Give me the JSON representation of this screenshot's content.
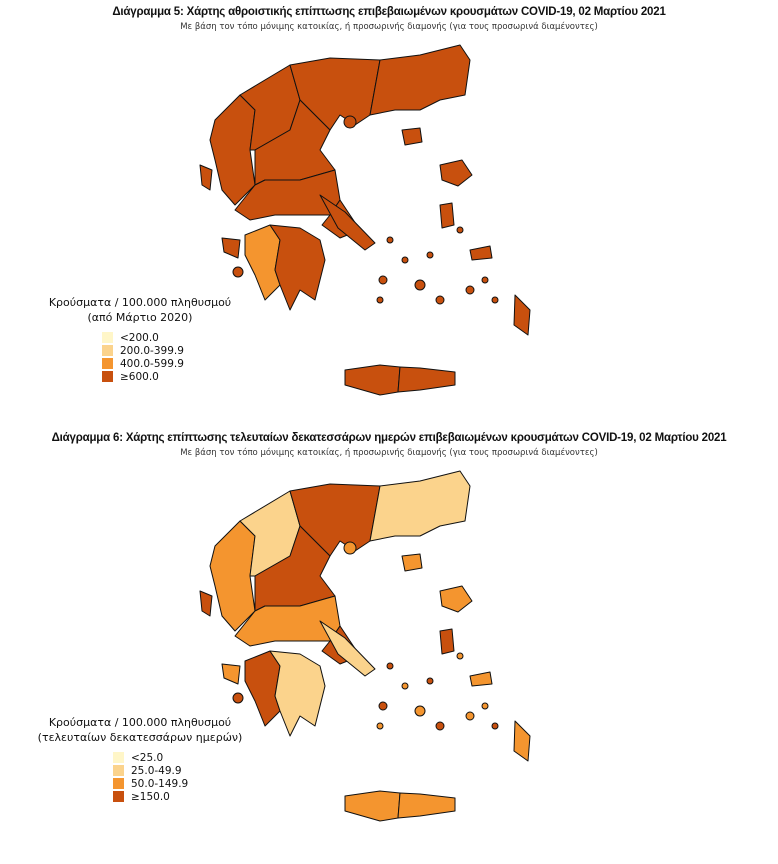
{
  "palette": [
    "#fff6c8",
    "#fbd38c",
    "#f4952f",
    "#c8500e"
  ],
  "maps": [
    {
      "title": "Διάγραμμα 5: Χάρτης αθροιστικής επίπτωσης επιβεβαιωμένων κρουσμάτων COVID-19, 02 Μαρτίου 2021",
      "subtitle": "Με βάση τον τόπο μόνιμης κατοικίας, ή προσωρινής διαμονής (για τους προσωρινά διαμένοντες)",
      "legend": {
        "title_line1": "Κρούσματα / 100.000 πληθυσμού",
        "title_line2": "(από Μάρτιο 2020)",
        "items": [
          "<200.0",
          "200.0-399.9",
          "400.0-599.9",
          "≥600.0"
        ]
      },
      "region_classes": [
        3,
        3,
        3,
        3,
        3,
        3,
        2,
        3,
        3,
        3,
        3,
        3,
        3,
        3,
        3,
        3,
        3,
        3,
        3
      ]
    },
    {
      "title": "Διάγραμμα 6: Χάρτης επίπτωσης τελευταίων δεκατεσσάρων ημερών επιβεβαιωμένων κρουσμάτων COVID-19, 02 Μαρτίου 2021",
      "subtitle": "Με βάση τον τόπο μόνιμης κατοικίας, ή προσωρινής διαμονής (για τους προσωρινά διαμένοντες)",
      "legend": {
        "title_line1": "Κρούσματα / 100.000 πληθυσμού",
        "title_line2": "(τελευταίων δεκατεσσάρων ημερών)",
        "items": [
          "<25.0",
          "25.0-49.9",
          "50.0-149.9",
          "≥150.0"
        ]
      },
      "region_classes": [
        2,
        1,
        3,
        1,
        3,
        2,
        3,
        1,
        3,
        1,
        2,
        2,
        2,
        3,
        2,
        2,
        2,
        3,
        2
      ]
    }
  ]
}
